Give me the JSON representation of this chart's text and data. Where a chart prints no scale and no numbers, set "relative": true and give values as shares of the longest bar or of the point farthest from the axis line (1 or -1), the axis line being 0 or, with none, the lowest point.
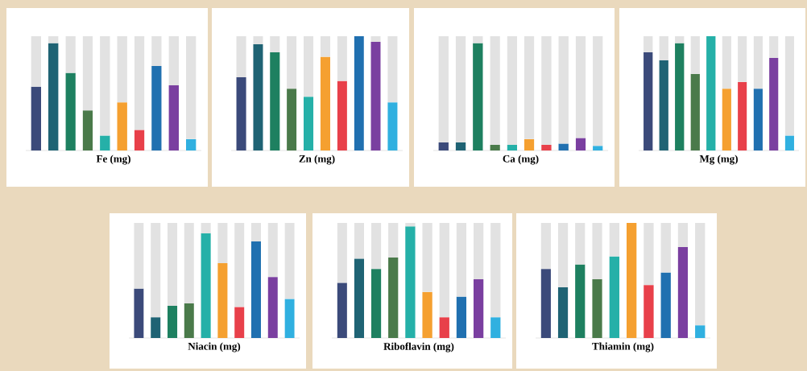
{
  "chart_data": [
    {
      "type": "bar",
      "title": "Fe (mg)",
      "relative": true,
      "stacked": true,
      "categories": [
        null,
        null,
        null,
        null,
        null,
        null,
        null,
        null,
        null,
        null
      ],
      "series": [
        {
          "colors": [
            "#3b4a7a",
            "#1f6374",
            "#1e8060",
            "#4a7a4a",
            "#25b0a8",
            "#f5a030",
            "#e8404a",
            "#2070b0",
            "#7a3fa0",
            "#30b0e0"
          ],
          "values": [
            0.56,
            0.94,
            0.68,
            0.35,
            0.13,
            0.42,
            0.18,
            0.74,
            0.57,
            0.1
          ]
        },
        {
          "color": "#e2e2e2",
          "values": [
            0.44,
            0.06,
            0.32,
            0.65,
            0.87,
            0.58,
            0.82,
            0.26,
            0.43,
            0.9
          ]
        }
      ]
    },
    {
      "type": "bar",
      "title": "Zn (mg)",
      "relative": true,
      "stacked": true,
      "categories": [
        null,
        null,
        null,
        null,
        null,
        null,
        null,
        null,
        null,
        null
      ],
      "series": [
        {
          "colors": [
            "#3b4a7a",
            "#1f6374",
            "#1e8060",
            "#4a7a4a",
            "#25b0a8",
            "#f5a030",
            "#e8404a",
            "#2070b0",
            "#7a3fa0",
            "#30b0e0"
          ],
          "values": [
            0.64,
            0.93,
            0.86,
            0.54,
            0.47,
            0.82,
            0.61,
            1.0,
            0.95,
            0.42
          ]
        },
        {
          "color": "#e2e2e2",
          "values": [
            0.36,
            0.07,
            0.14,
            0.46,
            0.53,
            0.18,
            0.39,
            0,
            0.05,
            0.58
          ]
        }
      ]
    },
    {
      "type": "bar",
      "title": "Ca (mg)",
      "relative": true,
      "stacked": true,
      "categories": [
        null,
        null,
        null,
        null,
        null,
        null,
        null,
        null,
        null,
        null
      ],
      "series": [
        {
          "colors": [
            "#3b4a7a",
            "#1f6374",
            "#1e8060",
            "#4a7a4a",
            "#25b0a8",
            "#f5a030",
            "#e8404a",
            "#2070b0",
            "#7a3fa0",
            "#30b0e0"
          ],
          "values": [
            0.07,
            0.07,
            0.94,
            0.05,
            0.05,
            0.1,
            0.05,
            0.06,
            0.11,
            0.04
          ]
        },
        {
          "color": "#e2e2e2",
          "values": [
            0.93,
            0.93,
            0.06,
            0.95,
            0.95,
            0.9,
            0.95,
            0.94,
            0.89,
            0.96
          ]
        }
      ]
    },
    {
      "type": "bar",
      "title": "Mg (mg)",
      "relative": true,
      "stacked": true,
      "categories": [
        null,
        null,
        null,
        null,
        null,
        null,
        null,
        null,
        null,
        null
      ],
      "series": [
        {
          "colors": [
            "#3b4a7a",
            "#1f6374",
            "#1e8060",
            "#4a7a4a",
            "#25b0a8",
            "#f5a030",
            "#e8404a",
            "#2070b0",
            "#7a3fa0",
            "#30b0e0"
          ],
          "values": [
            0.86,
            0.79,
            0.94,
            0.67,
            1.0,
            0.54,
            0.6,
            0.54,
            0.81,
            0.13
          ]
        },
        {
          "color": "#e2e2e2",
          "values": [
            0.14,
            0.21,
            0.06,
            0.33,
            0,
            0.46,
            0.4,
            0.46,
            0.19,
            0.87
          ]
        }
      ]
    },
    {
      "type": "bar",
      "title": "Niacin (mg)",
      "relative": true,
      "stacked": true,
      "categories": [
        null,
        null,
        null,
        null,
        null,
        null,
        null,
        null,
        null,
        null
      ],
      "series": [
        {
          "colors": [
            "#3b4a7a",
            "#1f6374",
            "#1e8060",
            "#4a7a4a",
            "#25b0a8",
            "#f5a030",
            "#e8404a",
            "#2070b0",
            "#7a3fa0",
            "#30b0e0"
          ],
          "values": [
            0.43,
            0.18,
            0.28,
            0.3,
            0.91,
            0.65,
            0.27,
            0.84,
            0.53,
            0.34
          ]
        },
        {
          "color": "#e2e2e2",
          "values": [
            0.57,
            0.82,
            0.72,
            0.7,
            0.09,
            0.35,
            0.73,
            0.16,
            0.47,
            0.66
          ]
        }
      ]
    },
    {
      "type": "bar",
      "title": "Riboflavin (mg)",
      "relative": true,
      "stacked": true,
      "categories": [
        null,
        null,
        null,
        null,
        null,
        null,
        null,
        null,
        null,
        null
      ],
      "series": [
        {
          "colors": [
            "#3b4a7a",
            "#1f6374",
            "#1e8060",
            "#4a7a4a",
            "#25b0a8",
            "#f5a030",
            "#e8404a",
            "#2070b0",
            "#7a3fa0",
            "#30b0e0"
          ],
          "values": [
            0.48,
            0.69,
            0.6,
            0.7,
            0.97,
            0.4,
            0.18,
            0.36,
            0.51,
            0.18
          ]
        },
        {
          "color": "#e2e2e2",
          "values": [
            0.52,
            0.31,
            0.4,
            0.3,
            0.03,
            0.6,
            0.82,
            0.64,
            0.49,
            0.82
          ]
        }
      ]
    },
    {
      "type": "bar",
      "title": "Thiamin (mg)",
      "relative": true,
      "stacked": true,
      "categories": [
        null,
        null,
        null,
        null,
        null,
        null,
        null,
        null,
        null,
        null
      ],
      "series": [
        {
          "colors": [
            "#3b4a7a",
            "#1f6374",
            "#1e8060",
            "#4a7a4a",
            "#25b0a8",
            "#f5a030",
            "#e8404a",
            "#2070b0",
            "#7a3fa0",
            "#30b0e0"
          ],
          "values": [
            0.6,
            0.44,
            0.64,
            0.51,
            0.71,
            1.0,
            0.46,
            0.57,
            0.79,
            0.11
          ]
        },
        {
          "color": "#e2e2e2",
          "values": [
            0.4,
            0.56,
            0.36,
            0.49,
            0.29,
            0,
            0.54,
            0.43,
            0.21,
            0.89
          ]
        }
      ]
    }
  ]
}
